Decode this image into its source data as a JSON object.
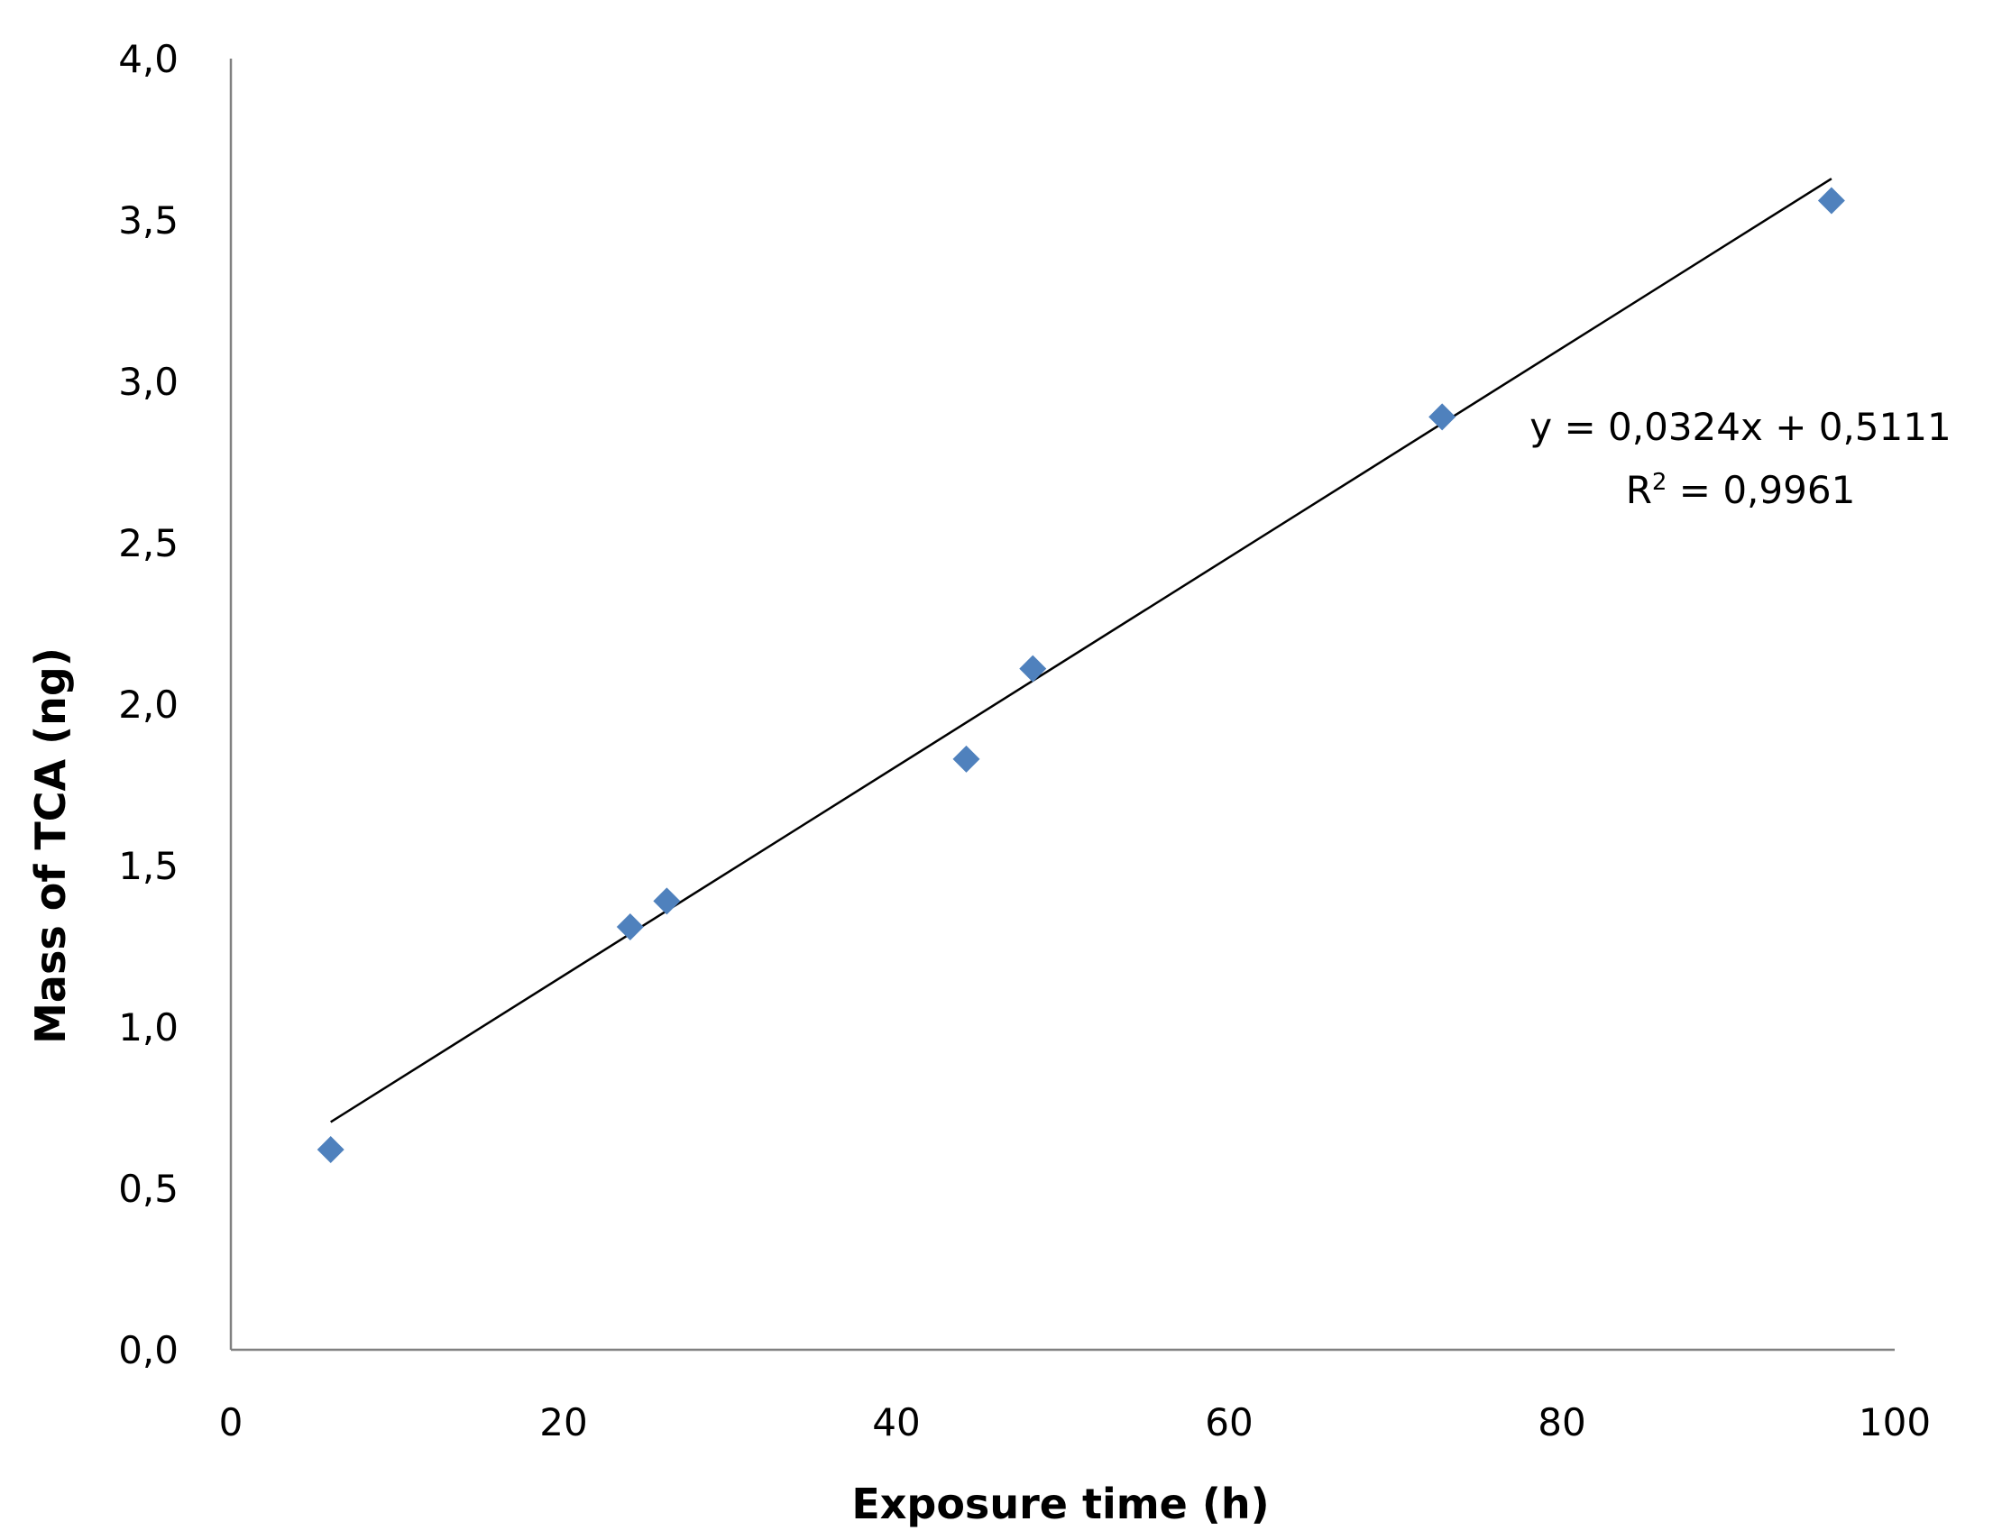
{
  "chart_data": {
    "type": "scatter",
    "title": "",
    "xlabel": "Exposure time (h)",
    "ylabel": "Mass of TCA  (ng)",
    "xlim": [
      0,
      100
    ],
    "ylim": [
      0,
      4
    ],
    "x_ticks": [
      "0",
      "20",
      "40",
      "60",
      "80",
      "100"
    ],
    "y_ticks": [
      "0,0",
      "0,5",
      "1,0",
      "1,5",
      "2,0",
      "2,5",
      "3,0",
      "3,5",
      "4,0"
    ],
    "grid": false,
    "legend": "none",
    "series": [
      {
        "color": "#4F81BD",
        "marker": "diamond",
        "points": [
          {
            "x": 6,
            "y": 0.62
          },
          {
            "x": 24,
            "y": 1.31
          },
          {
            "x": 26.2,
            "y": 1.39
          },
          {
            "x": 44.2,
            "y": 1.83
          },
          {
            "x": 48.2,
            "y": 2.11
          },
          {
            "x": 72.8,
            "y": 2.89
          },
          {
            "x": 96.2,
            "y": 3.56
          }
        ]
      }
    ],
    "trendline": {
      "type": "linear",
      "slope": 0.0324,
      "intercept": 0.5111,
      "x_range": [
        6,
        96.2
      ],
      "color": "#000000",
      "equation": "y = 0,0324x + 0,5111",
      "r2_prefix": "R",
      "r2_rest": " = 0,9961"
    },
    "axis_color": "#808080"
  }
}
